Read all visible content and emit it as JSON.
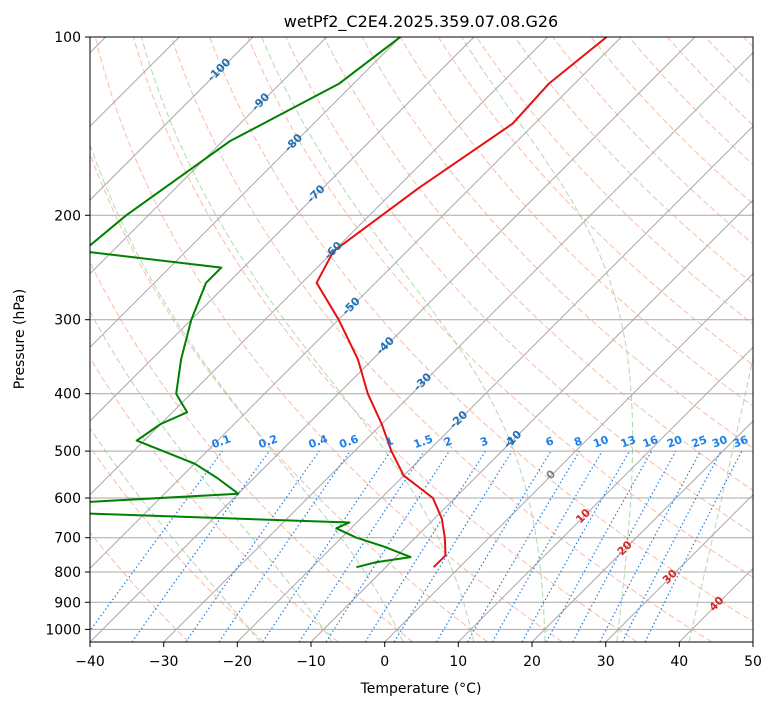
{
  "chart_data": {
    "type": "line",
    "title": "wetPf2_C2E4.2025.359.07.08.G26",
    "xlabel": "Temperature (°C)",
    "ylabel": "Pressure (hPa)",
    "xlim": [
      -40,
      50
    ],
    "ylim": [
      1050,
      100
    ],
    "y_scale": "log",
    "grid": true,
    "x_ticks": [
      -40,
      -30,
      -20,
      -10,
      0,
      10,
      20,
      30,
      40,
      50
    ],
    "x_tick_labels": [
      "−40",
      "−30",
      "−20",
      "−10",
      "0",
      "10",
      "20",
      "30",
      "40",
      "50"
    ],
    "y_ticks": [
      100,
      200,
      300,
      400,
      500,
      600,
      700,
      800,
      900,
      1000
    ],
    "y_tick_labels": [
      "100",
      "200",
      "300",
      "400",
      "500",
      "600",
      "700",
      "800",
      "900",
      "1000"
    ],
    "colors": {
      "temperature": "#e81010",
      "dewpoint": "#008000",
      "isotherm": "#a8a8a8",
      "dry_adiabat": "#f7a58a",
      "moist_adiabat": "#9ccf9c",
      "mixing_ratio": "#1f7fe6",
      "dry_adiabat_label": "#d62828",
      "isotherm_label": "#1f6fb4",
      "zero_label": "#808080"
    },
    "series": [
      {
        "key": "temperature",
        "points": [
          [
            -52,
            100
          ],
          [
            -53.5,
            120
          ],
          [
            -53,
            140
          ],
          [
            -57,
            180
          ],
          [
            -60,
            230
          ],
          [
            -58,
            260
          ],
          [
            -50,
            300
          ],
          [
            -42,
            350
          ],
          [
            -36,
            400
          ],
          [
            -30,
            450
          ],
          [
            -25,
            500
          ],
          [
            -20,
            550
          ],
          [
            -13,
            600
          ],
          [
            -9,
            650
          ],
          [
            -6,
            700
          ],
          [
            -3.5,
            750
          ],
          [
            -3.5,
            785
          ]
        ]
      },
      {
        "key": "dewpoint",
        "points": [
          [
            -80,
            100
          ],
          [
            -82,
            120
          ],
          [
            -89,
            150
          ],
          [
            -93,
            200
          ],
          [
            -94,
            230
          ],
          [
            -73,
            245
          ],
          [
            -73,
            260
          ],
          [
            -70,
            300
          ],
          [
            -66,
            350
          ],
          [
            -62,
            400
          ],
          [
            -58,
            430
          ],
          [
            -60,
            450
          ],
          [
            -61,
            480
          ],
          [
            -50,
            525
          ],
          [
            -45,
            555
          ],
          [
            -40,
            590
          ],
          [
            -65,
            615
          ],
          [
            -70,
            630
          ],
          [
            -45,
            645
          ],
          [
            -21,
            660
          ],
          [
            -22,
            675
          ],
          [
            -18,
            700
          ],
          [
            -13,
            725
          ],
          [
            -8,
            755
          ],
          [
            -12,
            770
          ],
          [
            -14,
            785
          ]
        ]
      }
    ],
    "isotherm_labels": [
      "-100",
      "-90",
      "-80",
      "-70",
      "-60",
      "-50",
      "-40",
      "-30",
      "-20",
      "-10",
      "0",
      "10",
      "20",
      "30",
      "40"
    ],
    "mixing_ratio_labels": [
      "0.1",
      "0.2",
      "0.4",
      "0.6",
      "1",
      "1.5",
      "2",
      "3",
      "4",
      "6",
      "8",
      "10",
      "13",
      "16",
      "20",
      "25",
      "30",
      "36"
    ]
  }
}
